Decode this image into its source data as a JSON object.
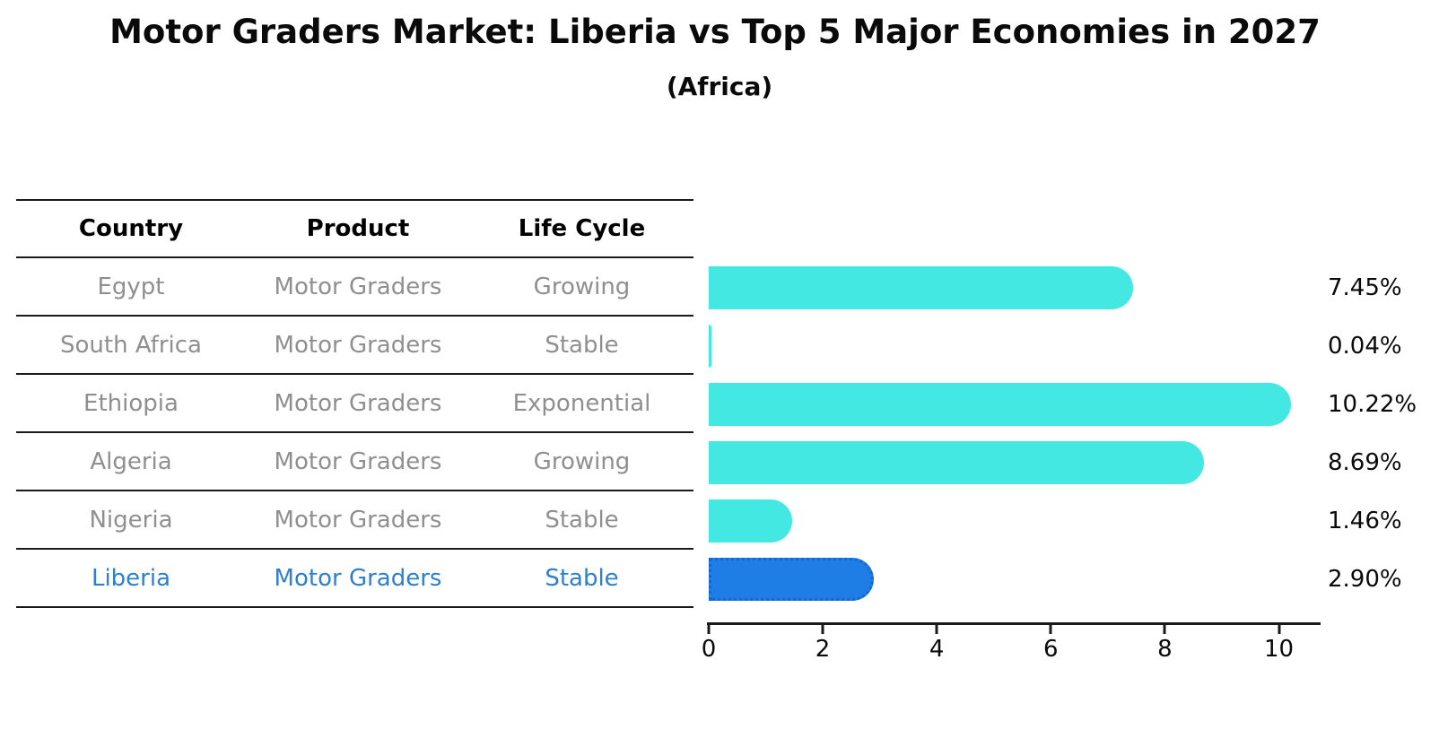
{
  "title": "Motor Graders Market: Liberia vs Top 5 Major Economies in 2027",
  "subtitle": "(Africa)",
  "table": {
    "headers": [
      "Country",
      "Product",
      "Life Cycle"
    ],
    "rows": [
      {
        "country": "Egypt",
        "product": "Motor Graders",
        "life_cycle": "Growing",
        "highlight": false
      },
      {
        "country": "South Africa",
        "product": "Motor Graders",
        "life_cycle": "Stable",
        "highlight": false
      },
      {
        "country": "Ethiopia",
        "product": "Motor Graders",
        "life_cycle": "Exponential",
        "highlight": false
      },
      {
        "country": "Algeria",
        "product": "Motor Graders",
        "life_cycle": "Growing",
        "highlight": false
      },
      {
        "country": "Nigeria",
        "product": "Motor Graders",
        "life_cycle": "Stable",
        "highlight": false
      },
      {
        "country": "Liberia",
        "product": "Motor Graders",
        "life_cycle": "Stable",
        "highlight": true
      }
    ]
  },
  "chart_data": {
    "type": "bar",
    "orientation": "horizontal",
    "title": "Motor Graders Market: Liberia vs Top 5 Major Economies in 2027",
    "subtitle": "(Africa)",
    "categories": [
      "Egypt",
      "South Africa",
      "Ethiopia",
      "Algeria",
      "Nigeria",
      "Liberia"
    ],
    "values": [
      7.45,
      0.04,
      10.22,
      8.69,
      1.46,
      2.9
    ],
    "value_labels": [
      "7.45%",
      "0.04%",
      "10.22%",
      "8.69%",
      "1.46%",
      "2.90%"
    ],
    "x_ticks": [
      "0",
      "2",
      "4",
      "6",
      "8",
      "10"
    ],
    "xlim": [
      0,
      10.7
    ],
    "grid": false,
    "legend": false,
    "highlight_category": "Liberia"
  },
  "colors": {
    "bar_default": "#43e8e3",
    "bar_highlight": "#1f7de6",
    "bar_highlight_border": "#1766ce",
    "highlight_text": "#2e7fcc",
    "table_text": "#8f8f8f"
  }
}
